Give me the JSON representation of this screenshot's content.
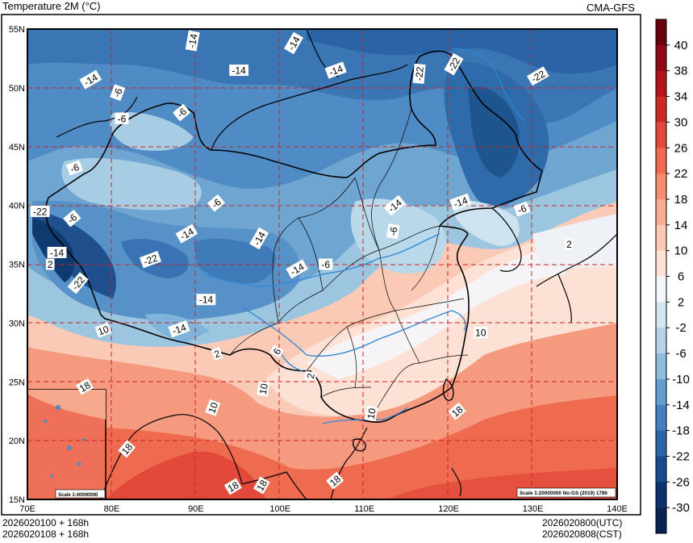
{
  "header": {
    "title": "Temperature  2M (°C)",
    "source": "CMA-GFS"
  },
  "footer": {
    "left_line1": "2026020100 + 168h",
    "left_line2": "2026020108 + 168h",
    "right_line1": "2026020800(UTC)",
    "right_line2": "2026020808(CST)"
  },
  "map": {
    "lat_labels": [
      "55N",
      "50N",
      "45N",
      "40N",
      "35N",
      "30N",
      "25N",
      "20N",
      "15N"
    ],
    "lon_labels": [
      "70E",
      "80E",
      "90E",
      "100E",
      "110E",
      "120E",
      "130E",
      "140E"
    ],
    "scale_main": "Scale 1:20000000 No:GS (2019) 1786",
    "scale_inset": "Scale 1:40000000",
    "contour_labels": [
      {
        "text": "-14",
        "lon": 77.5,
        "lat": 50.7,
        "rot": -30
      },
      {
        "text": "-6",
        "lon": 80.7,
        "lat": 49.6,
        "rot": -70
      },
      {
        "text": "-6",
        "lon": 81.2,
        "lat": 47.4,
        "rot": 0
      },
      {
        "text": "-6",
        "lon": 88.3,
        "lat": 47.9,
        "rot": -40
      },
      {
        "text": "-14",
        "lon": 89.6,
        "lat": 54.0,
        "rot": -80
      },
      {
        "text": "-14",
        "lon": 95.1,
        "lat": 51.5,
        "rot": 0
      },
      {
        "text": "-14",
        "lon": 101.6,
        "lat": 53.8,
        "rot": -60
      },
      {
        "text": "-14",
        "lon": 106.6,
        "lat": 51.5,
        "rot": -20
      },
      {
        "text": "-22",
        "lon": 116.5,
        "lat": 51.2,
        "rot": -85
      },
      {
        "text": "-22",
        "lon": 120.6,
        "lat": 52.0,
        "rot": -60
      },
      {
        "text": "-22",
        "lon": 130.6,
        "lat": 51.0,
        "rot": -30
      },
      {
        "text": "-6",
        "lon": 75.6,
        "lat": 43.2,
        "rot": -20
      },
      {
        "text": "-22",
        "lon": 71.5,
        "lat": 39.5,
        "rot": 0
      },
      {
        "text": "-6",
        "lon": 75.3,
        "lat": 38.9,
        "rot": -40
      },
      {
        "text": "-6",
        "lon": 92.4,
        "lat": 40.2,
        "rot": -40
      },
      {
        "text": "-14",
        "lon": 88.9,
        "lat": 37.6,
        "rot": -30
      },
      {
        "text": "-14",
        "lon": 73.5,
        "lat": 36.0,
        "rot": 0
      },
      {
        "text": "-22",
        "lon": 84.6,
        "lat": 35.4,
        "rot": -20
      },
      {
        "text": "-14",
        "lon": 97.5,
        "lat": 37.2,
        "rot": -60
      },
      {
        "text": "-14",
        "lon": 102.0,
        "lat": 34.6,
        "rot": -30
      },
      {
        "text": "-6",
        "lon": 105.4,
        "lat": 35.0,
        "rot": 0
      },
      {
        "text": "-14",
        "lon": 113.6,
        "lat": 40.0,
        "rot": -40
      },
      {
        "text": "-6",
        "lon": 113.4,
        "lat": 37.8,
        "rot": -80
      },
      {
        "text": "-14",
        "lon": 121.4,
        "lat": 40.3,
        "rot": -20
      },
      {
        "text": "-6",
        "lon": 128.7,
        "lat": 39.7,
        "rot": -20
      },
      {
        "text": "2",
        "lon": 72.7,
        "lat": 35.0,
        "rot": 0
      },
      {
        "text": "-22",
        "lon": 76.0,
        "lat": 33.4,
        "rot": -50
      },
      {
        "text": "-14",
        "lon": 91.2,
        "lat": 32.0,
        "rot": 0
      },
      {
        "text": "-14",
        "lon": 88.0,
        "lat": 29.5,
        "rot": -20
      },
      {
        "text": "2",
        "lon": 134.3,
        "lat": 36.7,
        "rot": 0
      },
      {
        "text": "10",
        "lon": 79.0,
        "lat": 29.4,
        "rot": -20
      },
      {
        "text": "2",
        "lon": 92.5,
        "lat": 27.4,
        "rot": -20
      },
      {
        "text": "6",
        "lon": 99.6,
        "lat": 27.6,
        "rot": -60
      },
      {
        "text": "2",
        "lon": 103.6,
        "lat": 25.5,
        "rot": -80
      },
      {
        "text": "10",
        "lon": 98.0,
        "lat": 24.4,
        "rot": -80
      },
      {
        "text": "10",
        "lon": 92.0,
        "lat": 22.8,
        "rot": -70
      },
      {
        "text": "10",
        "lon": 110.8,
        "lat": 22.3,
        "rot": -80
      },
      {
        "text": "10",
        "lon": 123.8,
        "lat": 29.2,
        "rot": 0
      },
      {
        "text": "18",
        "lon": 76.8,
        "lat": 24.6,
        "rot": -30
      },
      {
        "text": "18",
        "lon": 121.0,
        "lat": 22.5,
        "rot": -40
      },
      {
        "text": "18",
        "lon": 81.8,
        "lat": 19.3,
        "rot": -50
      },
      {
        "text": "18",
        "lon": 94.4,
        "lat": 16.1,
        "rot": -30
      },
      {
        "text": "18",
        "lon": 97.8,
        "lat": 16.2,
        "rot": -60
      },
      {
        "text": "18",
        "lon": 106.5,
        "lat": 16.6,
        "rot": -40
      }
    ]
  },
  "legend": {
    "labels": [
      "40",
      "38",
      "34",
      "30",
      "26",
      "22",
      "18",
      "14",
      "10",
      "6",
      "2",
      "-2",
      "-6",
      "-10",
      "-14",
      "-18",
      "-22",
      "-26",
      "-30"
    ],
    "colors": [
      "#67000d",
      "#8e0a14",
      "#b3141d",
      "#cd2a26",
      "#e1493a",
      "#ef6a4e",
      "#f48c6e",
      "#f8ac91",
      "#fbc9b4",
      "#fde3d6",
      "#f3f6fa",
      "#d4e6f1",
      "#b4d3e8",
      "#8dbbdc",
      "#649ecf",
      "#4382bf",
      "#2b66aa",
      "#174c91",
      "#0a326f",
      "#082454"
    ]
  }
}
